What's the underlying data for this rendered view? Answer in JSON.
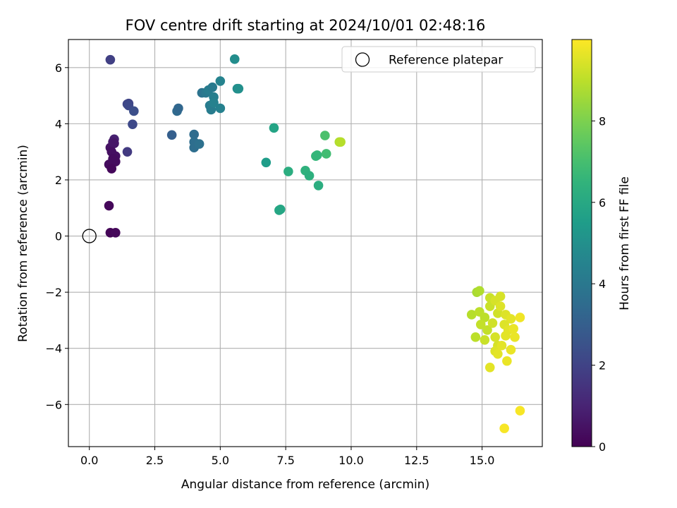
{
  "chart_data": {
    "type": "scatter",
    "title": "FOV centre drift starting at 2024/10/01 02:48:16",
    "xlabel": "Angular distance from reference (arcmin)",
    "ylabel": "Rotation from reference (arcmin)",
    "xlim": [
      -0.8,
      17.3
    ],
    "ylim": [
      -7.5,
      7.0
    ],
    "xticks": [
      0.0,
      2.5,
      5.0,
      7.5,
      10.0,
      12.5,
      15.0
    ],
    "xtick_labels": [
      "0.0",
      "2.5",
      "5.0",
      "7.5",
      "10.0",
      "12.5",
      "15.0"
    ],
    "yticks": [
      -6,
      -4,
      -2,
      0,
      2,
      4,
      6
    ],
    "ytick_labels": [
      "−6",
      "−4",
      "−2",
      "0",
      "2",
      "4",
      "6"
    ],
    "grid": true,
    "legend": {
      "position": "top-right",
      "entries": [
        {
          "label": "Reference platepar",
          "marker": "open-circle"
        }
      ]
    },
    "reference_point": {
      "x": 0.0,
      "y": 0.0
    },
    "colorbar": {
      "label": "Hours from first FF file",
      "range": [
        0,
        10
      ],
      "ticks": [
        0,
        2,
        4,
        6,
        8
      ],
      "tick_labels": [
        "0",
        "2",
        "4",
        "6",
        "8"
      ],
      "colormap": "viridis"
    },
    "series": [
      {
        "points": [
          [
            0.8,
            6.28,
            1.9
          ],
          [
            0.8,
            3.15,
            0.5
          ],
          [
            0.95,
            3.45,
            0.9
          ],
          [
            0.9,
            3.35,
            0.7
          ],
          [
            0.95,
            3.3,
            0.6
          ],
          [
            0.85,
            3.0,
            0.4
          ],
          [
            1.0,
            2.85,
            0.4
          ],
          [
            0.9,
            2.75,
            0.3
          ],
          [
            1.0,
            2.65,
            0.3
          ],
          [
            0.75,
            2.55,
            0.3
          ],
          [
            0.85,
            2.4,
            0.2
          ],
          [
            0.75,
            1.08,
            0.2
          ],
          [
            0.8,
            0.12,
            0.1
          ],
          [
            1.0,
            0.12,
            0.2
          ],
          [
            1.5,
            4.72,
            2.0
          ],
          [
            1.45,
            4.7,
            2.1
          ],
          [
            1.5,
            4.65,
            2.2
          ],
          [
            1.7,
            4.45,
            2.4
          ],
          [
            1.65,
            3.98,
            2.2
          ],
          [
            1.45,
            3.0,
            1.7
          ],
          [
            3.15,
            3.6,
            3.0
          ],
          [
            3.35,
            4.45,
            3.4
          ],
          [
            3.4,
            4.55,
            3.3
          ],
          [
            4.0,
            3.62,
            3.5
          ],
          [
            4.0,
            3.35,
            3.6
          ],
          [
            4.0,
            3.15,
            3.6
          ],
          [
            4.2,
            3.28,
            3.7
          ],
          [
            4.3,
            5.1,
            3.8
          ],
          [
            4.45,
            5.1,
            4.0
          ],
          [
            4.55,
            5.2,
            4.2
          ],
          [
            4.7,
            5.3,
            4.1
          ],
          [
            4.6,
            4.65,
            4.2
          ],
          [
            4.65,
            4.5,
            4.2
          ],
          [
            4.75,
            4.95,
            4.3
          ],
          [
            4.75,
            4.75,
            4.4
          ],
          [
            5.0,
            5.52,
            4.5
          ],
          [
            5.0,
            4.55,
            4.4
          ],
          [
            5.55,
            6.3,
            4.9
          ],
          [
            5.65,
            5.25,
            4.9
          ],
          [
            5.7,
            5.25,
            5.0
          ],
          [
            6.75,
            2.62,
            5.5
          ],
          [
            7.05,
            3.85,
            5.8
          ],
          [
            7.25,
            0.92,
            5.9
          ],
          [
            7.3,
            0.95,
            5.9
          ],
          [
            7.6,
            2.3,
            6.2
          ],
          [
            8.25,
            2.33,
            6.4
          ],
          [
            8.4,
            2.15,
            6.3
          ],
          [
            8.65,
            2.85,
            6.6
          ],
          [
            8.7,
            2.88,
            6.6
          ],
          [
            8.75,
            1.8,
            6.2
          ],
          [
            9.0,
            3.58,
            7.1
          ],
          [
            9.05,
            2.93,
            6.9
          ],
          [
            9.55,
            3.35,
            8.8
          ],
          [
            9.6,
            3.35,
            8.9
          ],
          [
            14.8,
            -2.0,
            8.7
          ],
          [
            14.9,
            -1.95,
            8.8
          ],
          [
            15.3,
            -2.2,
            9.2
          ],
          [
            15.7,
            -2.15,
            9.4
          ],
          [
            14.6,
            -2.8,
            8.9
          ],
          [
            14.9,
            -2.7,
            9.0
          ],
          [
            15.1,
            -2.9,
            9.0
          ],
          [
            15.3,
            -2.5,
            9.2
          ],
          [
            15.5,
            -2.3,
            9.4
          ],
          [
            15.6,
            -2.75,
            9.3
          ],
          [
            15.7,
            -2.5,
            9.5
          ],
          [
            15.9,
            -2.8,
            9.5
          ],
          [
            16.1,
            -2.95,
            9.6
          ],
          [
            16.45,
            -2.9,
            9.8
          ],
          [
            14.75,
            -3.6,
            9.0
          ],
          [
            14.95,
            -3.15,
            9.1
          ],
          [
            15.2,
            -3.35,
            9.1
          ],
          [
            15.1,
            -3.7,
            9.2
          ],
          [
            15.4,
            -3.1,
            9.3
          ],
          [
            15.5,
            -3.6,
            9.4
          ],
          [
            15.6,
            -3.9,
            9.4
          ],
          [
            15.85,
            -3.15,
            9.5
          ],
          [
            15.9,
            -3.55,
            9.6
          ],
          [
            16.0,
            -3.35,
            9.6
          ],
          [
            16.2,
            -3.3,
            9.7
          ],
          [
            16.25,
            -3.6,
            9.7
          ],
          [
            15.5,
            -4.1,
            9.5
          ],
          [
            15.6,
            -4.2,
            9.6
          ],
          [
            15.75,
            -3.9,
            9.6
          ],
          [
            16.1,
            -4.05,
            9.7
          ],
          [
            15.95,
            -4.45,
            9.7
          ],
          [
            15.3,
            -4.68,
            9.6
          ],
          [
            16.45,
            -6.22,
            9.9
          ],
          [
            15.85,
            -6.85,
            9.9
          ]
        ]
      }
    ]
  }
}
